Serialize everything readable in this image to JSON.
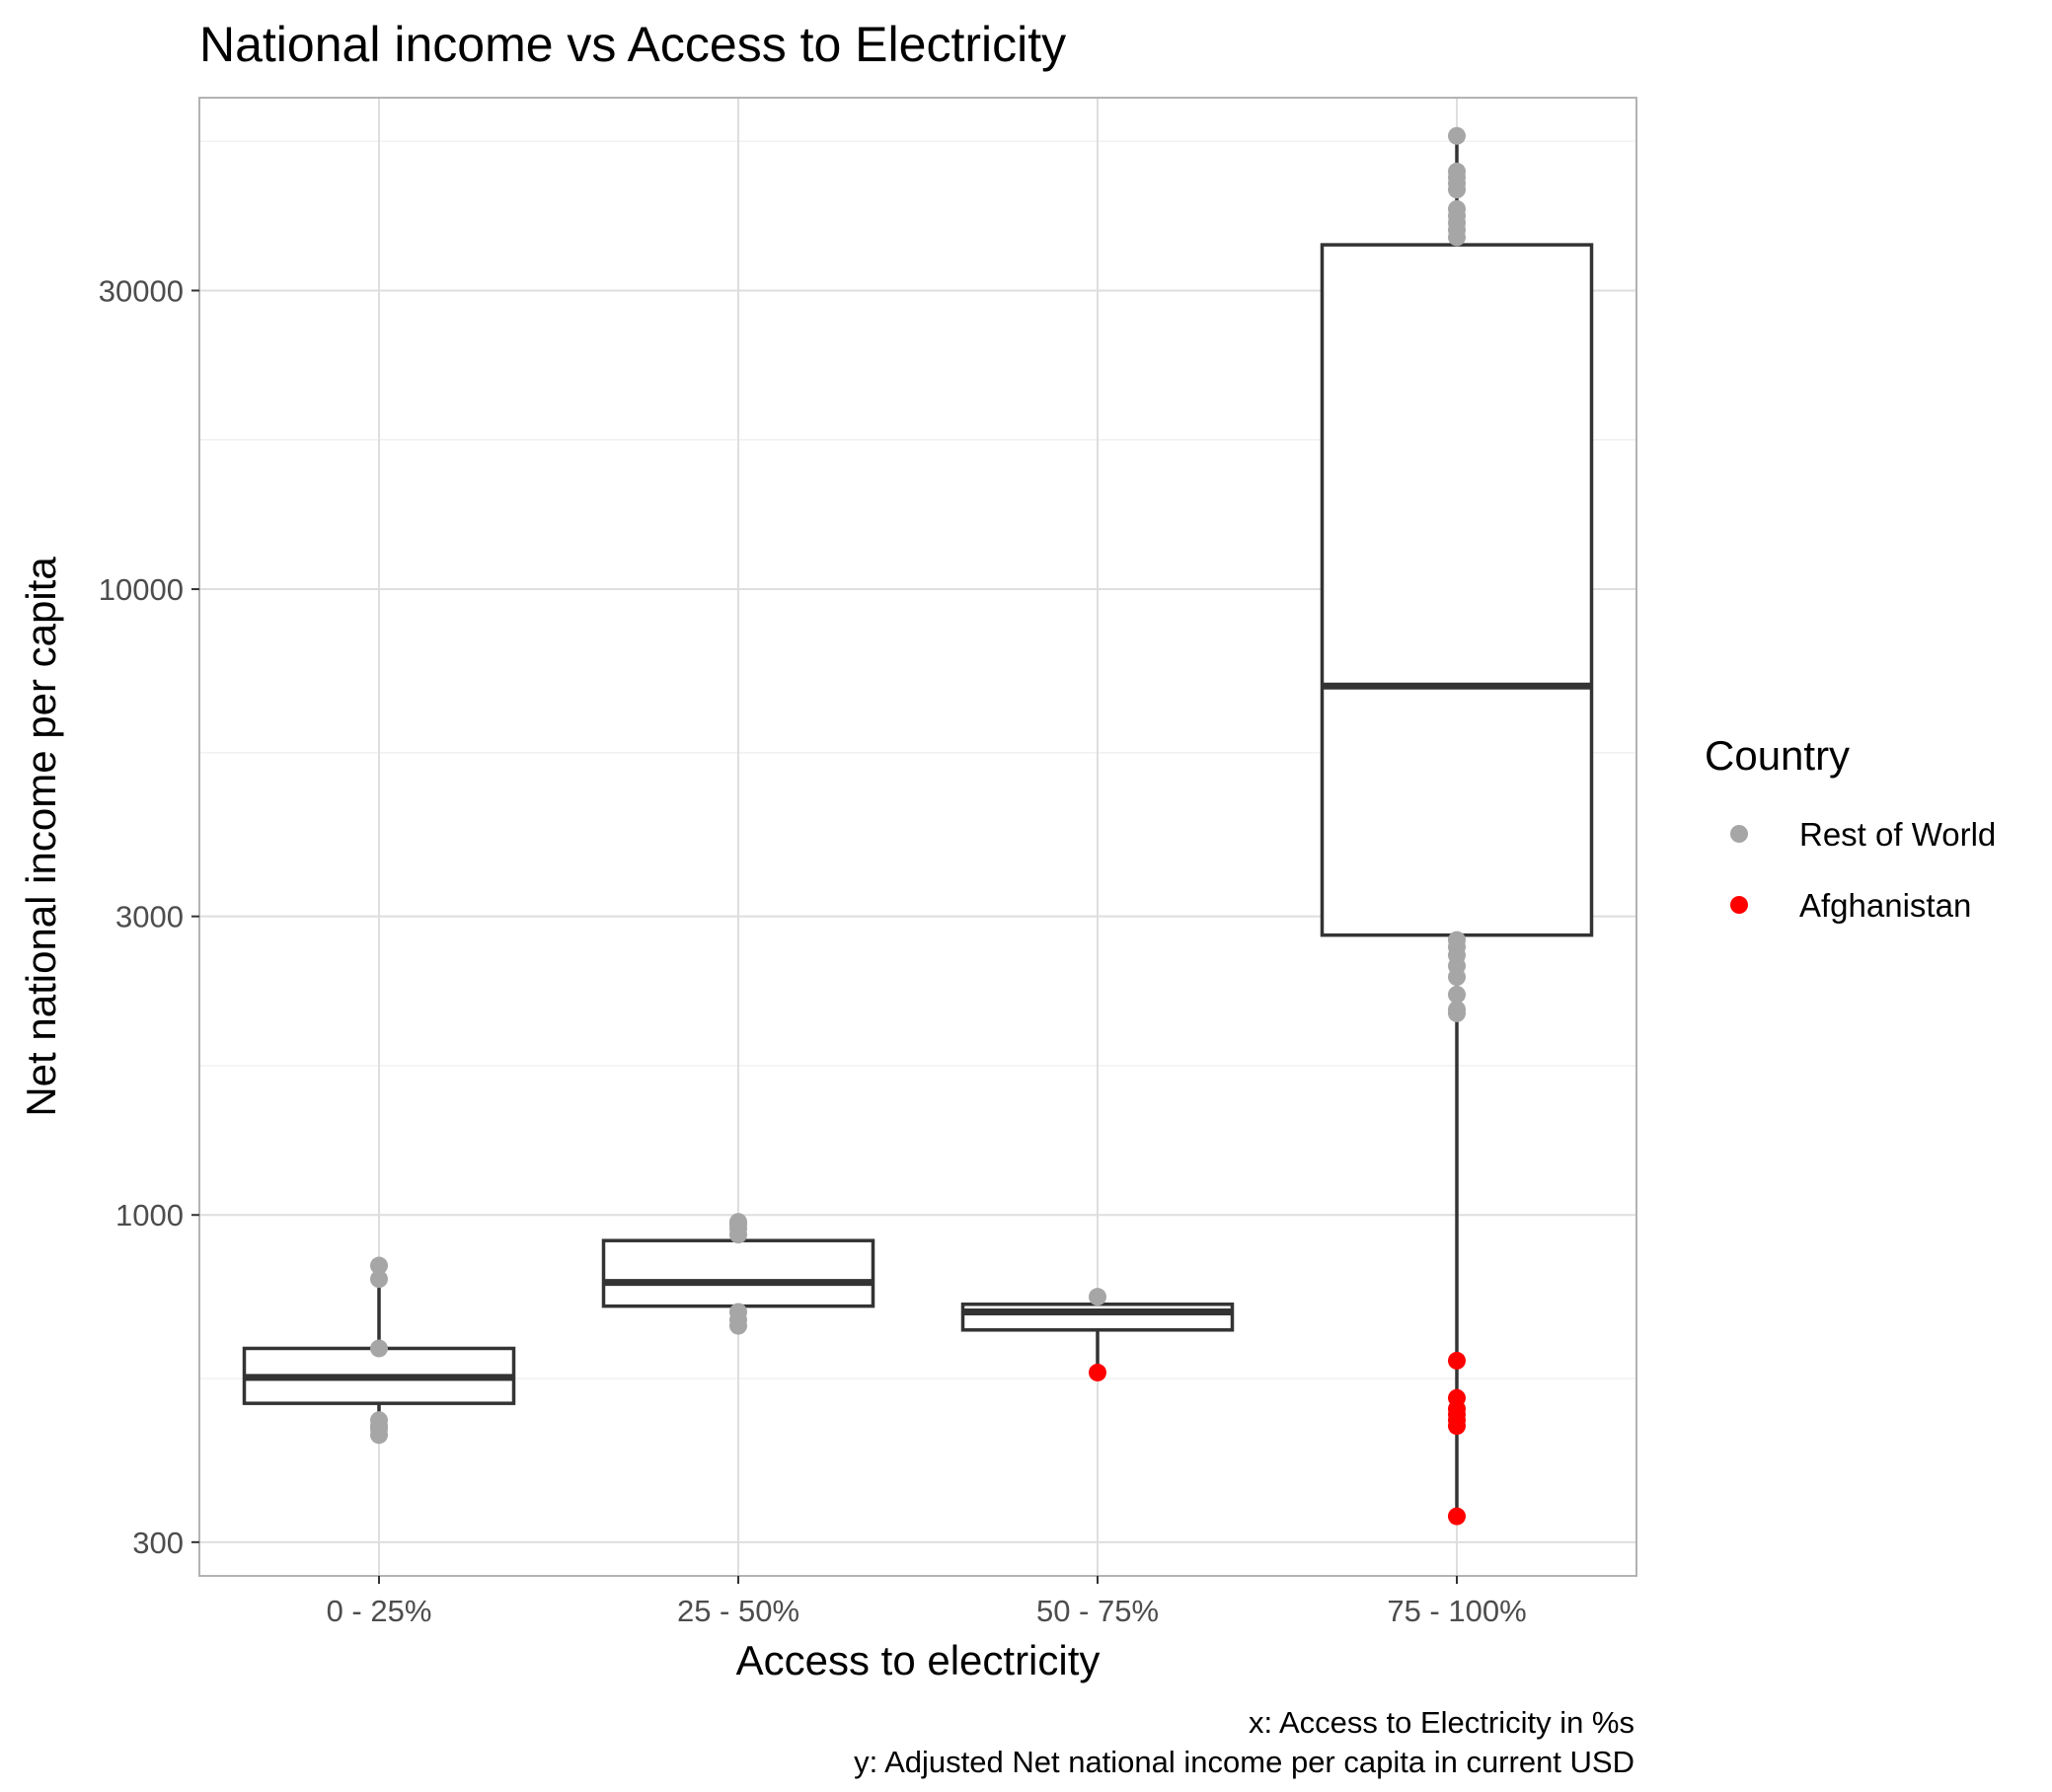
{
  "chart_data": {
    "type": "box",
    "title": "National income vs Access to Electricity",
    "xlabel": "Access to electricity",
    "ylabel": "Net national income per capita",
    "y_scale": "log10",
    "ylim": [
      265,
      61000
    ],
    "y_ticks": [
      300,
      1000,
      3000,
      10000,
      30000
    ],
    "y_tick_labels": [
      "300",
      "1000",
      "3000",
      "10000",
      "30000"
    ],
    "categories": [
      "0 - 25%",
      "25 - 50%",
      "50 - 75%",
      "75 - 100%"
    ],
    "grid": true,
    "legend": {
      "title": "Country",
      "placement": "right",
      "entries": [
        {
          "label": "Rest of World",
          "color": "#a6a6a6"
        },
        {
          "label": "Afghanistan",
          "color": "#ff0000"
        }
      ]
    },
    "captions": [
      "x: Access to Electricity in %s",
      "y: Adjusted Net national income per capita in current USD"
    ],
    "colors": {
      "rest_of_world": "#a6a6a6",
      "afghanistan": "#ff0000",
      "box_line": "#333333"
    },
    "boxes": [
      {
        "category": "0 - 25%",
        "whisker_low": 445,
        "q1": 500,
        "median": 550,
        "q3": 612,
        "whisker_high": 830
      },
      {
        "category": "25 - 50%",
        "whisker_low": 665,
        "q1": 715,
        "median": 780,
        "q3": 910,
        "whisker_high": 975
      },
      {
        "category": "50 - 75%",
        "whisker_low": 560,
        "q1": 655,
        "median": 700,
        "q3": 720,
        "whisker_high": 740
      },
      {
        "category": "75 - 100%",
        "whisker_low": 330,
        "q1": 2800,
        "median": 7000,
        "q3": 35500,
        "whisker_high": 53000
      }
    ],
    "points": [
      {
        "category": "0 - 25%",
        "group": "Rest of World",
        "values": [
          445,
          455,
          460,
          470,
          612,
          790,
          830
        ]
      },
      {
        "category": "25 - 50%",
        "group": "Rest of World",
        "values": [
          665,
          680,
          700,
          930,
          950,
          965,
          975
        ]
      },
      {
        "category": "50 - 75%",
        "group": "Rest of World",
        "values": [
          740
        ]
      },
      {
        "category": "50 - 75%",
        "group": "Afghanistan",
        "values": [
          560
        ]
      },
      {
        "category": "75 - 100%",
        "group": "Rest of World",
        "values": [
          2100,
          2130,
          2250,
          2400,
          2500,
          2600,
          2680,
          2750,
          36500,
          37500,
          38500,
          39500,
          40500,
          43500,
          44500,
          45500,
          46500,
          53000
        ]
      },
      {
        "category": "75 - 100%",
        "group": "Afghanistan",
        "values": [
          330,
          460,
          470,
          480,
          490,
          510,
          585
        ]
      }
    ]
  }
}
